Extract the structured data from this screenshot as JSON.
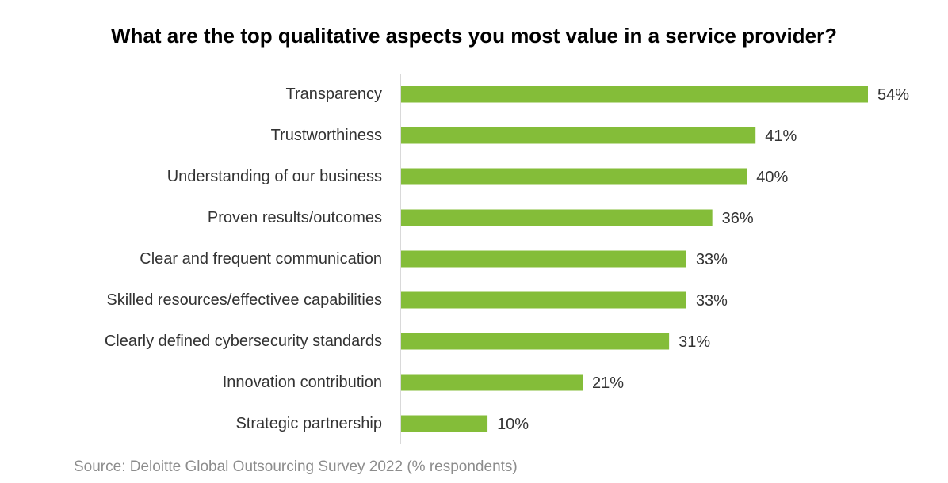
{
  "chart_data": {
    "type": "bar",
    "orientation": "horizontal",
    "title": "What are the top qualitative aspects you most value in a service provider?",
    "categories": [
      "Transparency",
      "Trustworthiness",
      "Understanding of our business",
      "Proven results/outcomes",
      "Clear and frequent communication",
      "Skilled resources/effectivee capabilities",
      "Clearly defined cybersecurity standards",
      "Innovation contribution",
      "Strategic partnership"
    ],
    "values": [
      54,
      41,
      40,
      36,
      33,
      33,
      31,
      21,
      10
    ],
    "value_labels": [
      "54%",
      "41%",
      "40%",
      "36%",
      "33%",
      "33%",
      "31%",
      "21%",
      "10%"
    ],
    "unit": "%",
    "xlim": [
      0,
      54
    ],
    "bar_color": "#84bd39",
    "grid": false,
    "legend": "none"
  },
  "source": "Source: Deloitte Global Outsourcing Survey 2022 (% respondents)"
}
